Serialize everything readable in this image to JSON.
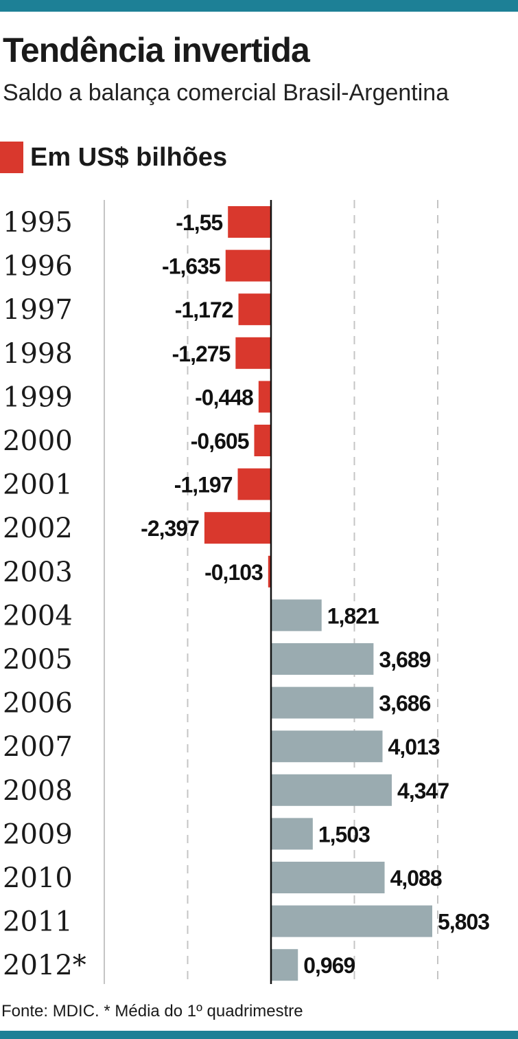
{
  "title": "Tendência invertida",
  "subtitle": "Saldo a balança comercial Brasil-Argentina",
  "legend": {
    "label": "Em US$ bilhões",
    "color": "#d9382d"
  },
  "footer": "Fonte: MDIC. * Média do 1º quadrimestre",
  "colors": {
    "accent": "#1d8096",
    "negative": "#d9382d",
    "positive": "#9aabb0"
  },
  "chart_data": {
    "type": "bar",
    "orientation": "horizontal",
    "categories": [
      "1995",
      "1996",
      "1997",
      "1998",
      "1999",
      "2000",
      "2001",
      "2002",
      "2003",
      "2004",
      "2005",
      "2006",
      "2007",
      "2008",
      "2009",
      "2010",
      "2011",
      "2012*"
    ],
    "values": [
      -1.55,
      -1.635,
      -1.172,
      -1.275,
      -0.448,
      -0.605,
      -1.197,
      -2.397,
      -0.103,
      1.821,
      3.689,
      3.686,
      4.013,
      4.347,
      1.503,
      4.088,
      5.803,
      0.969
    ],
    "value_labels": [
      "-1,55",
      "-1,635",
      "-1,172",
      "-1,275",
      "-0,448",
      "-0,605",
      "-1,197",
      "-2,397",
      "-0,103",
      "1,821",
      "3,689",
      "3,686",
      "4,013",
      "4,347",
      "1,503",
      "4,088",
      "5,803",
      "0,969"
    ],
    "xlim": [
      -6,
      9
    ],
    "gridlines": [
      -6,
      -3,
      3,
      6,
      9
    ],
    "grid": true
  }
}
